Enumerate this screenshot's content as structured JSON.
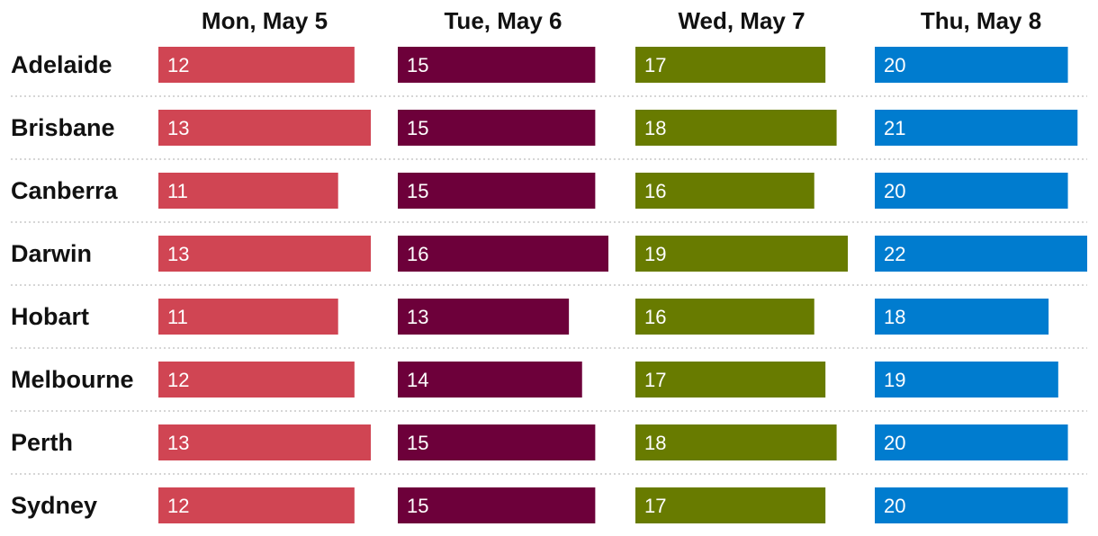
{
  "chart_data": {
    "type": "bar",
    "layout": "small-multiples",
    "categories": [
      "Adelaide",
      "Brisbane",
      "Canberra",
      "Darwin",
      "Hobart",
      "Melbourne",
      "Perth",
      "Sydney"
    ],
    "series": [
      {
        "name": "Mon, May 5",
        "color": "#d04553",
        "values": [
          12,
          13,
          11,
          13,
          11,
          12,
          13,
          12
        ]
      },
      {
        "name": "Tue, May 6",
        "color": "#6d003a",
        "values": [
          15,
          15,
          15,
          16,
          13,
          14,
          15,
          15
        ]
      },
      {
        "name": "Wed, May 7",
        "color": "#687b00",
        "values": [
          17,
          18,
          16,
          19,
          16,
          17,
          18,
          17
        ]
      },
      {
        "name": "Thu, May 8",
        "color": "#007ccf",
        "values": [
          20,
          21,
          20,
          22,
          18,
          19,
          20,
          20
        ]
      }
    ],
    "data_labels": true,
    "grid": false
  }
}
